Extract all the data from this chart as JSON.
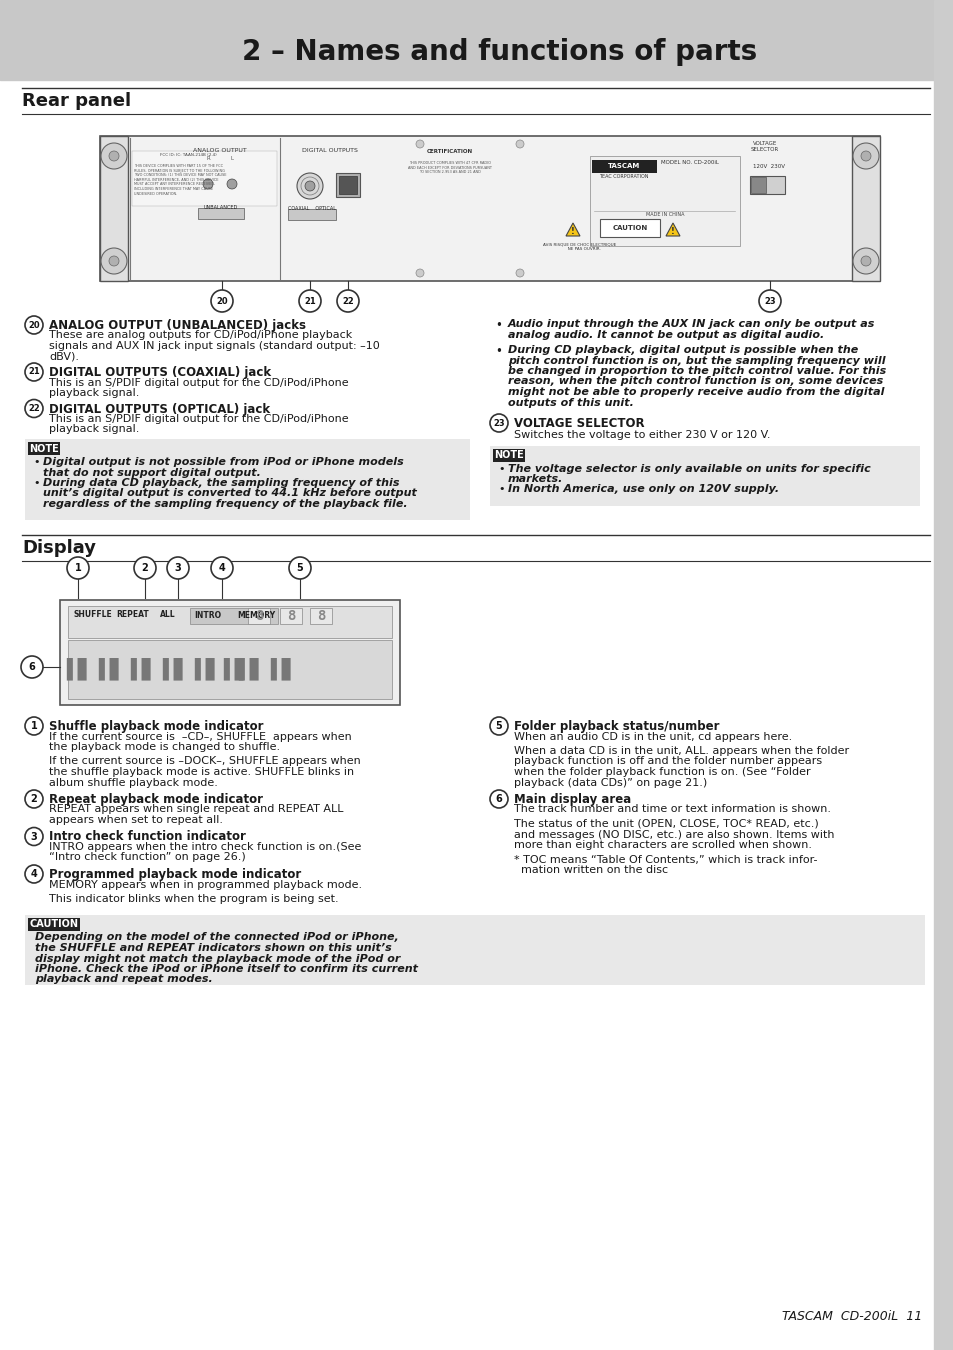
{
  "page_bg": "#ffffff",
  "header_bg": "#c8c8c8",
  "header_text": "2 – Names and functions of parts",
  "header_text_color": "#1a1a1a",
  "section1_title": "Rear panel",
  "section2_title": "Display",
  "footer_text": "TASCAM  CD-200iL  11",
  "note_bg": "#222222",
  "note_text_color": "#ffffff",
  "caution_bg": "#222222",
  "caution_text_color": "#ffffff",
  "body_text_color": "#1a1a1a",
  "sidebar_color": "#cccccc",
  "line_color": "#333333",
  "rear_panel_items": [
    {
      "num": "20",
      "title": "ANALOG OUTPUT (UNBALANCED) jacks",
      "body": "These are analog outputs for CD/iPod/iPhone playback\nsignals and AUX IN jack input signals (standard output: –10\ndBV)."
    },
    {
      "num": "21",
      "title": "DIGITAL OUTPUTS (COAXIAL) jack",
      "body": "This is an S/PDIF digital output for the CD/iPod/iPhone\nplayback signal."
    },
    {
      "num": "22",
      "title": "DIGITAL OUTPUTS (OPTICAL) jack",
      "body": "This is an S/PDIF digital output for the CD/iPod/iPhone\nplayback signal."
    }
  ],
  "rear_panel_note_label": "NOTE",
  "rear_panel_note_bullets": [
    "Digital output is not possible from iPod or iPhone models\nthat do not support digital output.",
    "During data CD playback, the sampling frequency of this\nunit’s digital output is converted to 44.1 kHz before output\nregardless of the sampling frequency of the playback file."
  ],
  "rear_panel_right_bullets": [
    "Audio input through the AUX IN jack can only be output as\nanalog audio. It cannot be output as digital audio.",
    "During CD playback, digital output is possible when the\npitch control function is on, but the sampling frequency will\nbe changed in proportion to the pitch control value. For this\nreason, when the pitch control function is on, some devices\nmight not be able to properly receive audio from the digital\noutputs of this unit."
  ],
  "voltage_num": "23",
  "voltage_title": "VOLTAGE SELECTOR",
  "voltage_body": "Switches the voltage to either 230 V or 120 V.",
  "voltage_note_label": "NOTE",
  "voltage_note_bullets": [
    "The voltage selector is only available on units for specific\nmarkets.",
    "In North America, use only on 120V supply."
  ],
  "display_items_left": [
    {
      "num": "1",
      "title": "Shuffle playback mode indicator",
      "lines": [
        "If the current source is  –CD–, SHUFFLE  appears when",
        "the playback mode is changed to shuffle.",
        "",
        "If the current source is –DOCK–, SHUFFLE appears when",
        "the shuffle playback mode is active. SHUFFLE blinks in",
        "album shuffle playback mode."
      ]
    },
    {
      "num": "2",
      "title": "Repeat playback mode indicator",
      "lines": [
        "REPEAT appears when single repeat and REPEAT ALL",
        "appears when set to repeat all."
      ]
    },
    {
      "num": "3",
      "title": "Intro check function indicator",
      "lines": [
        "INTRO appears when the intro check function is on.(See",
        "“Intro check function” on page 26.)"
      ]
    },
    {
      "num": "4",
      "title": "Programmed playback mode indicator",
      "lines": [
        "MEMORY appears when in programmed playback mode.",
        "",
        "This indicator blinks when the program is being set."
      ]
    }
  ],
  "display_items_right": [
    {
      "num": "5",
      "title": "Folder playback status/number",
      "lines": [
        "When an audio CD is in the unit, cd appears here.",
        "",
        "When a data CD is in the unit, ALL. appears when the folder",
        "playback function is off and the folder number appears",
        "when the folder playback function is on. (See “Folder",
        "playback (data CDs)” on page 21.)"
      ]
    },
    {
      "num": "6",
      "title": "Main display area",
      "lines": [
        "The track number and time or text information is shown.",
        "",
        "The status of the unit (OPEN, CLOSE, TOC* READ, etc.)",
        "and messages (NO DISC, etc.) are also shown. Items with",
        "more than eight characters are scrolled when shown.",
        "",
        "* TOC means “Table Of Contents,” which is track infor-",
        "  mation written on the disc"
      ]
    }
  ],
  "display_caution_label": "CAUTION",
  "display_caution_lines": [
    "Depending on the model of the connected iPod or iPhone,",
    "the SHUFFLE and REPEAT indicators shown on this unit’s",
    "display might not match the playback mode of the iPod or",
    "iPhone. Check the iPod or iPhone itself to confirm its current",
    "playback and repeat modes."
  ]
}
